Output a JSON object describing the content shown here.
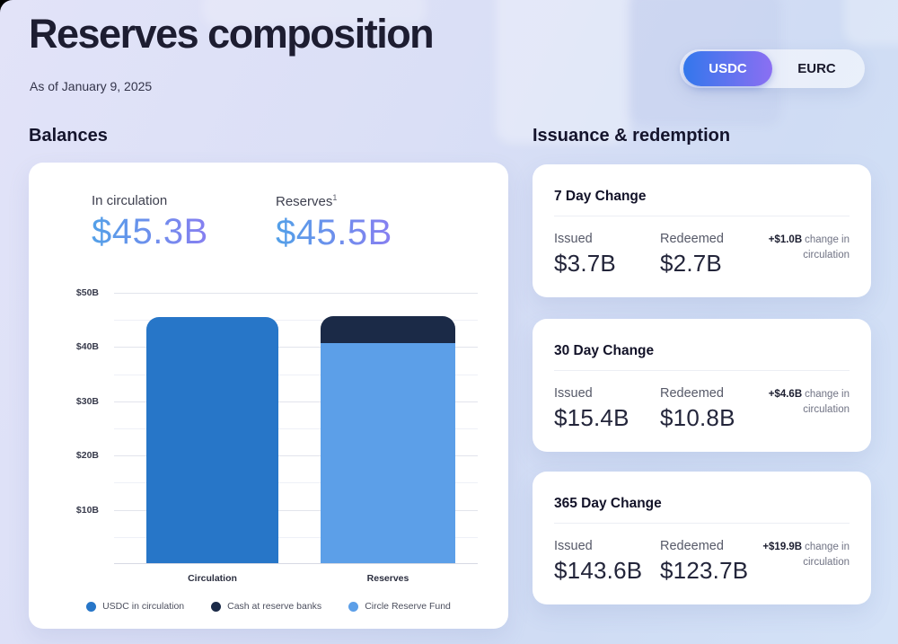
{
  "page": {
    "title": "Reserves composition",
    "as_of": "As of January 9, 2025"
  },
  "toggle": {
    "options": [
      {
        "label": "USDC",
        "selected": true
      },
      {
        "label": "EURC",
        "selected": false
      }
    ]
  },
  "balances": {
    "heading": "Balances",
    "stats": [
      {
        "label": "In circulation",
        "footnote_marker": "",
        "value": "$45.3B"
      },
      {
        "label": "Reserves",
        "footnote_marker": "1",
        "value": "$45.5B"
      }
    ]
  },
  "issuance": {
    "heading": "Issuance & redemption",
    "cards": [
      {
        "title": "7 Day Change",
        "issued_label": "Issued",
        "issued_value": "$3.7B",
        "redeemed_label": "Redeemed",
        "redeemed_value": "$2.7B",
        "change_amount": "+$1.0B",
        "change_text": "change in circulation"
      },
      {
        "title": "30 Day Change",
        "issued_label": "Issued",
        "issued_value": "$15.4B",
        "redeemed_label": "Redeemed",
        "redeemed_value": "$10.8B",
        "change_amount": "+$4.6B",
        "change_text": "change in circulation"
      },
      {
        "title": "365 Day Change",
        "issued_label": "Issued",
        "issued_value": "$143.6B",
        "redeemed_label": "Redeemed",
        "redeemed_value": "$123.7B",
        "change_amount": "+$19.9B",
        "change_text": "change in circulation"
      }
    ]
  },
  "chart_data": {
    "type": "bar",
    "stacked": true,
    "title": "",
    "categories": [
      "Circulation",
      "Reserves"
    ],
    "series": [
      {
        "name": "USDC in circulation",
        "color": "#2776C8"
      },
      {
        "name": "Cash at reserve banks",
        "color": "#1B2A47"
      },
      {
        "name": "Circle Reserve Fund",
        "color": "#5C9FE8"
      }
    ],
    "bars": [
      {
        "category": "Circulation",
        "segments": [
          {
            "series": "USDC in circulation",
            "value": 45.3
          }
        ]
      },
      {
        "category": "Reserves",
        "segments": [
          {
            "series": "Circle Reserve Fund",
            "value": 40.6
          },
          {
            "series": "Cash at reserve banks",
            "value": 4.9
          }
        ]
      }
    ],
    "ylim": [
      0,
      50
    ],
    "yticks": [
      {
        "value": 50,
        "label": "$50B"
      },
      {
        "value": 40,
        "label": "$40B"
      },
      {
        "value": 30,
        "label": "$30B"
      },
      {
        "value": 20,
        "label": "$20B"
      },
      {
        "value": 10,
        "label": "$10B"
      }
    ],
    "grid_step_minor": 5,
    "grid_step_major": 10,
    "legend_position": "bottom"
  },
  "colors": {
    "toggle_gradient_start": "#3377EC",
    "toggle_gradient_end": "#8B6FF2",
    "stat_gradient_start": "#53A0E8",
    "stat_gradient_end": "#8F7AF2",
    "card_background": "#FFFFFF",
    "page_background_start": "#E2E3F8",
    "page_background_end": "#D4E2F7"
  }
}
